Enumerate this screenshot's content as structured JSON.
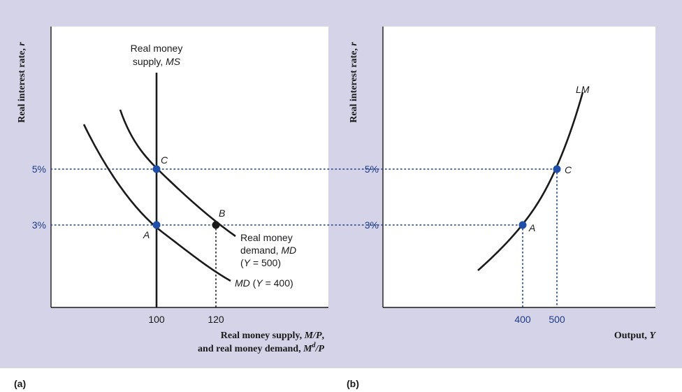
{
  "figure": {
    "label_a": "(a)",
    "label_b": "(b)"
  },
  "colors": {
    "background": "#d4d3e8",
    "plot_bg": "#ffffff",
    "curve": "#1a1a1a",
    "guide": "#1f3c88",
    "point_blue": "#1f4fa8",
    "point_black": "#1a1a1a",
    "tick_text": "#1f3c88"
  },
  "chart_data": [
    {
      "panel": "a",
      "type": "line",
      "ylabel": "Real interest rate, r",
      "xlabel_line1": "Real money supply, M/P,",
      "xlabel_line2": "and real money demand, Md/P",
      "xlim": [
        70,
        160
      ],
      "ylim": [
        0,
        8
      ],
      "x_ticks": [
        100,
        120
      ],
      "y_ticks": [
        {
          "value": 3,
          "label": "3%"
        },
        {
          "value": 5,
          "label": "5%"
        }
      ],
      "series": [
        {
          "name": "MS",
          "label_line1": "Real money",
          "label_line2": "supply, MS",
          "x": [
            100,
            100
          ],
          "y": [
            0,
            7.4
          ]
        },
        {
          "name": "MD (Y = 500)",
          "label_line1": "Real money",
          "label_line2": "demand, MD",
          "label_line3": "(Y = 500)",
          "x": [
            92,
            100,
            120,
            145
          ],
          "y": [
            7.1,
            5,
            3,
            2.4
          ]
        },
        {
          "name": "MD (Y = 400)",
          "label": "MD (Y = 400)",
          "x": [
            80,
            100,
            120,
            140
          ],
          "y": [
            6.6,
            3,
            1.7,
            0.95
          ]
        }
      ],
      "points": [
        {
          "label": "C",
          "x": 100,
          "y": 5,
          "color": "blue"
        },
        {
          "label": "A",
          "x": 100,
          "y": 3,
          "color": "blue"
        },
        {
          "label": "B",
          "x": 120,
          "y": 3,
          "color": "black"
        }
      ]
    },
    {
      "panel": "b",
      "type": "line",
      "ylabel": "Real interest rate, r",
      "xlabel": "Output, Y",
      "xlim": [
        280,
        680
      ],
      "ylim": [
        0,
        8
      ],
      "x_ticks": [
        400,
        500
      ],
      "y_ticks": [
        {
          "value": 3,
          "label": "3%"
        },
        {
          "value": 5,
          "label": "5%"
        }
      ],
      "series": [
        {
          "name": "LM",
          "label": "LM",
          "x": [
            330,
            400,
            450,
            500,
            560
          ],
          "y": [
            1.3,
            3,
            3.9,
            5,
            7.6
          ]
        }
      ],
      "points": [
        {
          "label": "A",
          "x": 400,
          "y": 3,
          "color": "blue"
        },
        {
          "label": "C",
          "x": 500,
          "y": 5,
          "color": "blue"
        }
      ]
    }
  ]
}
